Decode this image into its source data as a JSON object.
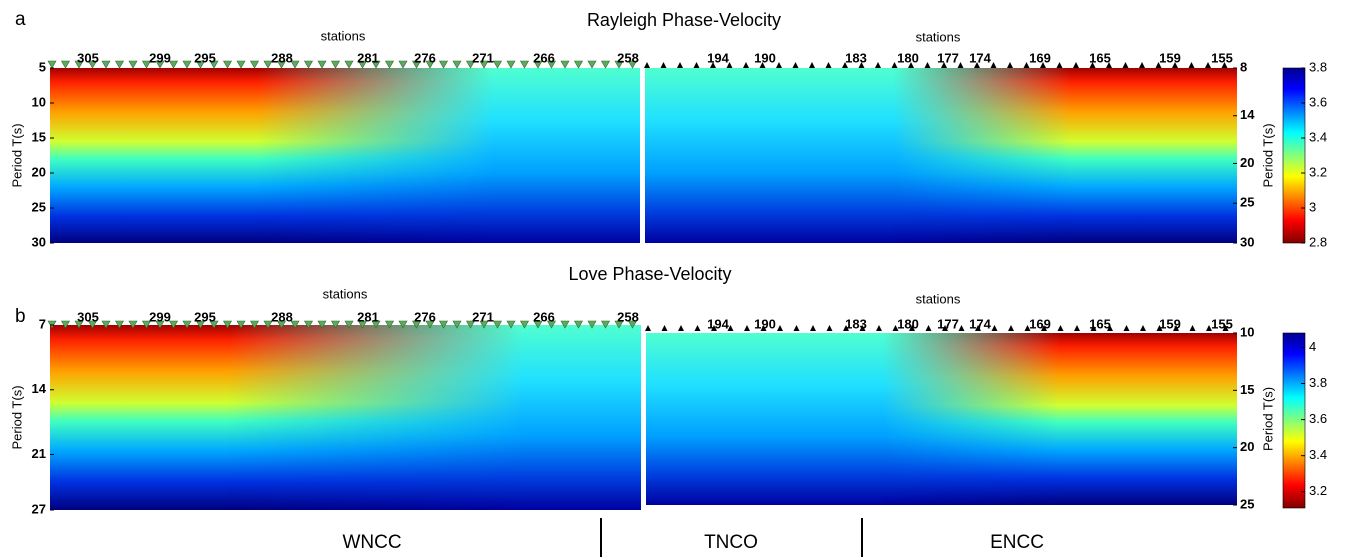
{
  "chart_data": [
    {
      "type": "heatmap",
      "label": "a",
      "title": "Rayleigh Phase-Velocity",
      "subplots": [
        {
          "xlabel": "stations",
          "stations": [
            "305",
            "299",
            "295",
            "288",
            "281",
            "276",
            "271",
            "266",
            "258"
          ],
          "ylabel": "Period T(s)",
          "ylim": [
            5,
            30
          ],
          "yticks": [
            5,
            10,
            15,
            20,
            25,
            30
          ]
        },
        {
          "xlabel": "stations",
          "stations": [
            "194",
            "190",
            "183",
            "180",
            "177",
            "174",
            "169",
            "165",
            "159",
            "155"
          ],
          "ylabel": "Period T(s)",
          "ylim": [
            8,
            30
          ],
          "yticks": [
            8,
            14,
            20,
            25,
            30
          ]
        }
      ],
      "colorbar": {
        "lim": [
          2.8,
          3.8
        ],
        "ticks": [
          2.8,
          3,
          3.2,
          3.4,
          3.6,
          3.8
        ]
      }
    },
    {
      "type": "heatmap",
      "label": "b",
      "title": "Love Phase-Velocity",
      "subplots": [
        {
          "xlabel": "stations",
          "stations": [
            "305",
            "299",
            "295",
            "288",
            "281",
            "276",
            "271",
            "266",
            "258"
          ],
          "ylabel": "Period T(s)",
          "ylim": [
            7,
            27
          ],
          "yticks": [
            7,
            14,
            21,
            27
          ]
        },
        {
          "xlabel": "stations",
          "stations": [
            "194",
            "190",
            "183",
            "180",
            "177",
            "174",
            "169",
            "165",
            "159",
            "155"
          ],
          "ylabel": "Period T(s)",
          "ylim": [
            10,
            25
          ],
          "yticks": [
            10,
            15,
            20,
            25
          ]
        }
      ],
      "colorbar": {
        "lim": [
          3.11,
          4.08
        ],
        "ticks": [
          3.2,
          3.4,
          3.6,
          3.8,
          4
        ]
      }
    }
  ],
  "regions": [
    "WNCC",
    "TNCO",
    "ENCC"
  ]
}
